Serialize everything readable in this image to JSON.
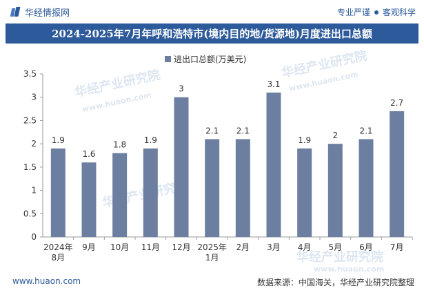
{
  "header": {
    "brand": "华经情报网",
    "slogan_left": "专业严谨",
    "slogan_right": "客观科学"
  },
  "watermark": {
    "text": "华经产业研究院",
    "url": "www.huaon.com"
  },
  "footer": {
    "website": "www.huaon.com",
    "source": "数据来源：中国海关，华经产业研究院整理"
  },
  "colors": {
    "bar": "#6d7fa1",
    "brand": "#2d5a9a"
  },
  "chart_data": {
    "type": "bar",
    "title": "2024-2025年7月年呼和浩特市(境内目的地/货源地)月度进出口总额",
    "legend": "进出口总额(万美元)",
    "categories": [
      "2024年8月",
      "9月",
      "10月",
      "11月",
      "12月",
      "2025年1月",
      "2月",
      "3月",
      "4月",
      "5月",
      "6月",
      "7月"
    ],
    "values": [
      1.9,
      1.6,
      1.8,
      1.9,
      3,
      2.1,
      2.1,
      3.1,
      1.9,
      2,
      2.1,
      2.7
    ],
    "value_labels": [
      "1.9",
      "1.6",
      "1.8",
      "1.9",
      "3",
      "2.1",
      "2.1",
      "3.1",
      "1.9",
      "2",
      "2.1",
      "2.7"
    ],
    "ylim": [
      0,
      3.5
    ],
    "yticks": [
      "0",
      "0.5",
      "1",
      "1.5",
      "2",
      "2.5",
      "3",
      "3.5"
    ],
    "xlabel": "",
    "ylabel": ""
  }
}
